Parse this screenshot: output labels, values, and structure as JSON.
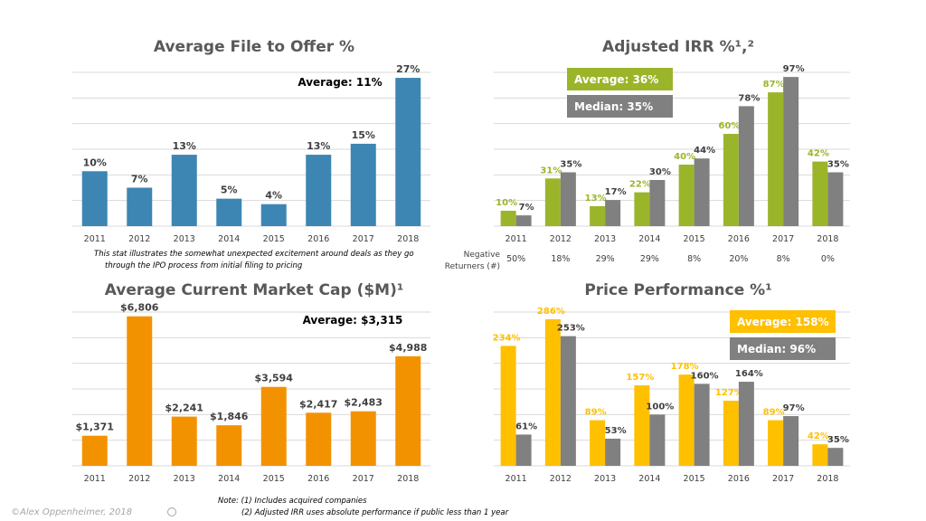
{
  "charts": {
    "file_to_offer": {
      "type": "bar",
      "title": "Average File to Offer %",
      "categories": [
        "2011",
        "2012",
        "2013",
        "2014",
        "2015",
        "2016",
        "2017",
        "2018"
      ],
      "values": [
        10,
        7,
        13,
        5,
        4,
        13,
        15,
        27
      ],
      "value_labels": [
        "10%",
        "7%",
        "13%",
        "5%",
        "4%",
        "13%",
        "15%",
        "27%"
      ],
      "ylim": [
        0,
        28
      ],
      "bar_color": "#3D86B3",
      "annotation": "Average: 11%",
      "footnote_lines": [
        "This stat illustrates  the somewhat unexpected excitement around deals as they go",
        "through  the IPO process from initial filing to pricing"
      ]
    },
    "adjusted_irr": {
      "type": "bar",
      "title": "Adjusted IRR %¹,²",
      "categories": [
        "2011",
        "2012",
        "2013",
        "2014",
        "2015",
        "2016",
        "2017",
        "2018"
      ],
      "series": [
        {
          "name": "Average",
          "color": "#9BB52B",
          "label_color": "#9BB52B",
          "values": [
            10,
            31,
            13,
            22,
            40,
            60,
            87,
            42
          ],
          "value_labels": [
            "10%",
            "31%",
            "13%",
            "22%",
            "40%",
            "60%",
            "87%",
            "42%"
          ]
        },
        {
          "name": "Median",
          "color": "#808080",
          "label_color": "#404040",
          "values": [
            7,
            35,
            17,
            30,
            44,
            78,
            97,
            35
          ],
          "value_labels": [
            "7%",
            "35%",
            "17%",
            "30%",
            "44%",
            "78%",
            "97%",
            "35%"
          ]
        }
      ],
      "ylim": [
        0,
        100
      ],
      "legend": [
        {
          "text": "Average: 36%",
          "color": "#9BB52B"
        },
        {
          "text": "Median: 35%",
          "color": "#808080"
        }
      ],
      "negative_returners": {
        "label_line1": "Negative",
        "label_line2": "Returners (#)",
        "values": [
          "50%",
          "18%",
          "29%",
          "29%",
          "8%",
          "20%",
          "8%",
          "0%"
        ]
      }
    },
    "market_cap": {
      "type": "bar",
      "title": "Average Current Market Cap ($M)¹",
      "categories": [
        "2011",
        "2012",
        "2013",
        "2014",
        "2015",
        "2016",
        "2017",
        "2018"
      ],
      "values": [
        1371,
        6806,
        2241,
        1846,
        3594,
        2417,
        2483,
        4988
      ],
      "value_labels": [
        "$1,371",
        "$6,806",
        "$2,241",
        "$1,846",
        "$3,594",
        "$2,417",
        "$2,483",
        "$4,988"
      ],
      "ylim": [
        0,
        7000
      ],
      "bar_color": "#F39200",
      "annotation": "Average: $3,315"
    },
    "price_performance": {
      "type": "bar",
      "title": "Price Performance %¹",
      "categories": [
        "2011",
        "2012",
        "2013",
        "2014",
        "2015",
        "2016",
        "2017",
        "2018"
      ],
      "series": [
        {
          "name": "Average",
          "color": "#FFC000",
          "label_color": "#FFC000",
          "values": [
            234,
            286,
            89,
            157,
            178,
            127,
            89,
            42
          ],
          "value_labels": [
            "234%",
            "286%",
            "89%",
            "157%",
            "178%",
            "127%",
            "89%",
            "42%"
          ]
        },
        {
          "name": "Median",
          "color": "#808080",
          "label_color": "#404040",
          "values": [
            61,
            253,
            53,
            100,
            160,
            164,
            97,
            35
          ],
          "value_labels": [
            "61%",
            "253%",
            "53%",
            "100%",
            "160%",
            "164%",
            "97%",
            "35%"
          ]
        }
      ],
      "ylim": [
        0,
        300
      ],
      "legend": [
        {
          "text": "Average: 158%",
          "color": "#FFC000"
        },
        {
          "text": "Median: 96%",
          "color": "#808080"
        }
      ]
    }
  },
  "notes": {
    "line1": "Note: (1) Includes acquired companies",
    "line2": "(2) Adjusted IRR uses absolute performance if public less than 1 year"
  },
  "copyright": "©Alex Oppenheimer, 2018",
  "colors": {
    "grid": "#D9D9D9",
    "text": "#404040",
    "title": "#595959"
  }
}
